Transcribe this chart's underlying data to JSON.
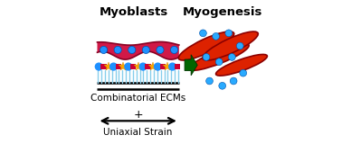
{
  "title_left": "Myoblasts",
  "title_right": "Myogenesis",
  "label_ecm": "Combinatorial ECMs",
  "label_strain": "Uniaxial Strain",
  "bg_color": "#ffffff",
  "title_fontsize": 9.5,
  "label_fontsize": 7.5,
  "blue_circle_color": "#1e90ff",
  "red_square_color": "#cc0033",
  "star_color": "#ffa500",
  "myotube_color": "#dd2200",
  "myotube_outline": "#8b0000",
  "nucleus_color": "#29aaff",
  "arrow_color": "#006600",
  "membrane_color": "#cc0033",
  "membrane_top_color": "#dd1144",
  "pillar_color": "#87ceeb",
  "plus_text": "+",
  "ecm_bar_color": "#000000"
}
